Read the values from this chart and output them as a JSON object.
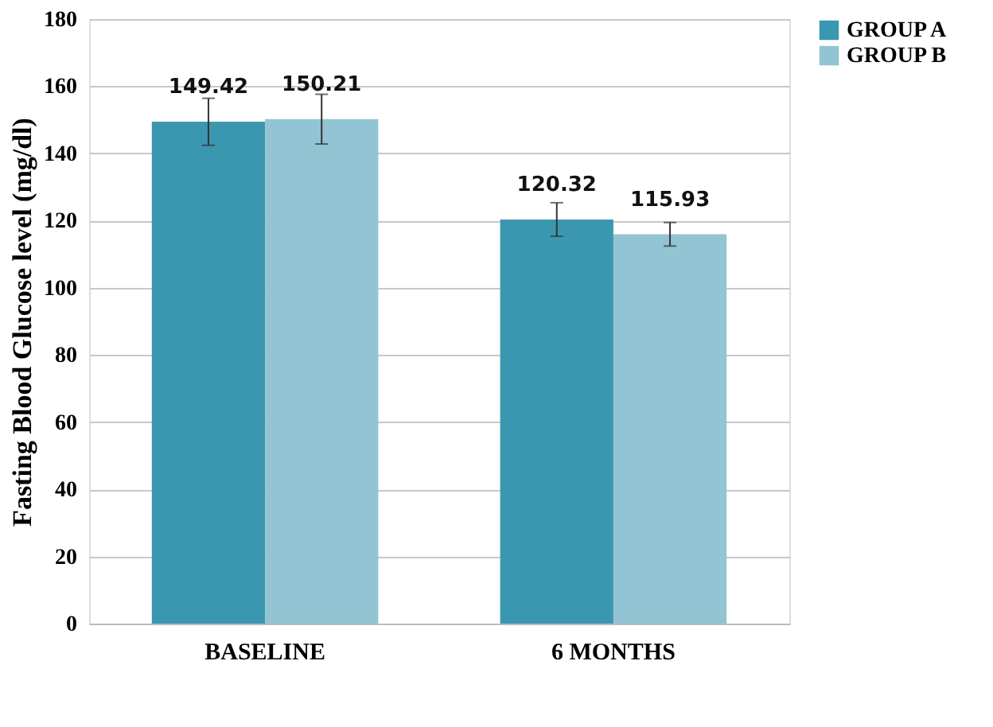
{
  "chart_data": {
    "type": "bar",
    "ylabel": "Fasting Blood Glucose level (mg/dl)",
    "categories": [
      "BASELINE",
      "6 MONTHS"
    ],
    "series": [
      {
        "name": "GROUP A",
        "color": "#3b97b0",
        "values": [
          149.42,
          120.32
        ],
        "errors": [
          7,
          5
        ]
      },
      {
        "name": "GROUP B",
        "color": "#92c4d4",
        "values": [
          150.21,
          115.93
        ],
        "errors": [
          7.4,
          3.5
        ]
      }
    ],
    "ylim": [
      0,
      180
    ],
    "yticks": [
      0,
      20,
      40,
      60,
      80,
      100,
      120,
      140,
      160,
      180
    ],
    "grid": "y",
    "legend": "right",
    "data_labels": true
  }
}
